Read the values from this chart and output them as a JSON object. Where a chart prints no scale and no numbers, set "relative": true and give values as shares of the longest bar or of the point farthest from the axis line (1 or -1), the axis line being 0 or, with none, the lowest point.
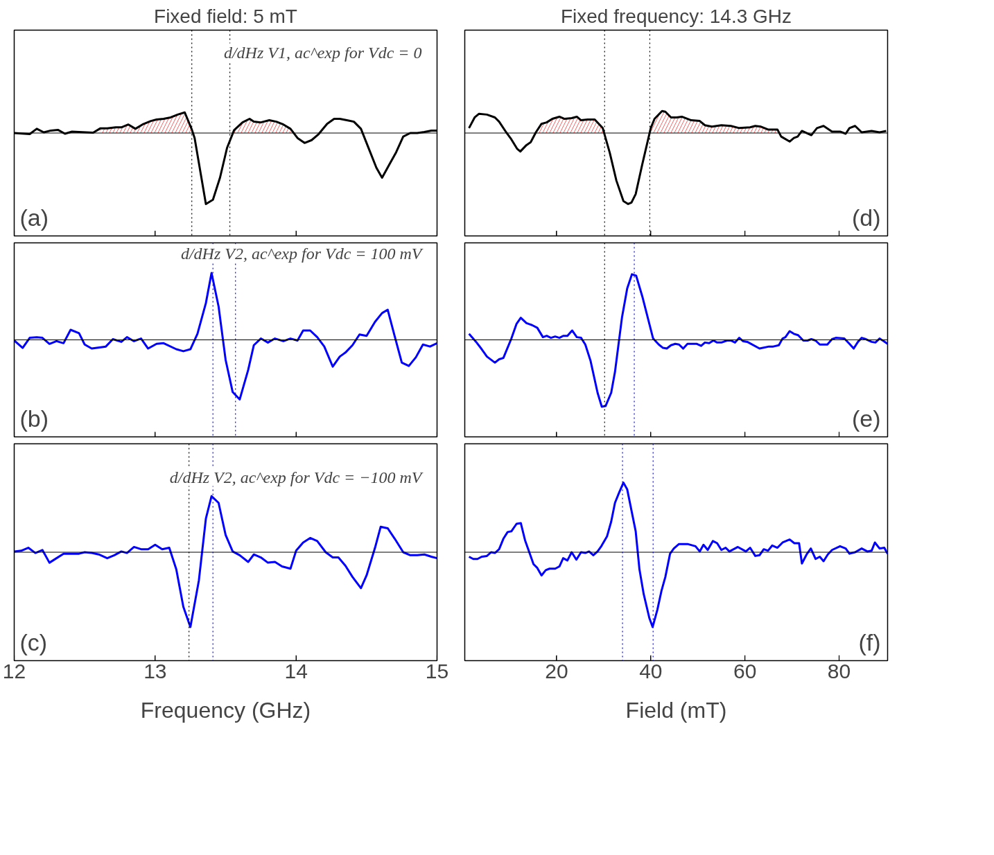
{
  "chart_data": [
    {
      "type": "line",
      "relative": true,
      "title": "Fixed field: 5 mT",
      "xlim": [
        12,
        15
      ],
      "xticks": [
        12,
        13,
        14,
        15
      ],
      "tick_labels": false,
      "grid": false,
      "x": [
        12.0,
        12.11,
        12.16,
        12.21,
        12.26,
        12.31,
        12.36,
        12.41,
        12.56,
        12.61,
        12.66,
        12.72,
        12.76,
        12.81,
        12.86,
        12.91,
        12.97,
        13.01,
        13.06,
        13.11,
        13.16,
        13.21,
        13.26,
        13.28,
        13.36,
        13.41,
        13.46,
        13.51,
        13.56,
        13.62,
        13.67,
        13.7,
        13.75,
        13.81,
        13.86,
        13.91,
        13.96,
        14.01,
        14.06,
        14.11,
        14.16,
        14.22,
        14.27,
        14.31,
        14.36,
        14.41,
        14.46,
        14.52,
        14.57,
        14.61,
        14.66,
        14.71,
        14.76,
        14.81,
        14.86,
        14.91,
        14.96,
        15.0
      ],
      "series": [
        {
          "type": "area",
          "color": "#ff0000",
          "x": [
            12.61,
            12.66,
            12.72,
            12.76,
            12.81,
            12.86,
            12.91,
            12.97,
            13.01,
            13.06,
            13.11,
            13.16,
            13.21,
            13.26
          ],
          "values": [
            0.065,
            0.065,
            0.08,
            0.08,
            0.12,
            0.06,
            0.12,
            0.17,
            0.19,
            0.2,
            0.22,
            0.26,
            0.29,
            0.05
          ]
        },
        {
          "type": "area",
          "color": "#ff0000",
          "x": [
            13.56,
            13.62,
            13.67,
            13.7,
            13.75,
            13.81,
            13.86,
            13.91,
            13.96
          ],
          "values": [
            0.04,
            0.15,
            0.2,
            0.16,
            0.15,
            0.18,
            0.16,
            0.12,
            0.06
          ]
        },
        {
          "type": "line",
          "color": "#000000",
          "values": [
            0.0,
            -0.015,
            0.06,
            0.01,
            0.035,
            0.045,
            -0.01,
            0.02,
            0.005,
            0.065,
            0.065,
            0.08,
            0.08,
            0.12,
            0.06,
            0.12,
            0.17,
            0.19,
            0.2,
            0.22,
            0.26,
            0.29,
            0.05,
            -0.07,
            -1,
            -0.94,
            -0.63,
            -0.21,
            0.04,
            0.15,
            0.2,
            0.16,
            0.15,
            0.18,
            0.16,
            0.12,
            0.06,
            -0.07,
            -0.14,
            -0.1,
            -0.015,
            0.13,
            0.2,
            0.2,
            0.18,
            0.16,
            0.06,
            -0.24,
            -0.49,
            -0.63,
            -0.45,
            -0.27,
            -0.05,
            0.0,
            0.0,
            0.015,
            0.035,
            0.035
          ]
        }
      ],
      "ref_lines": [
        {
          "axis": "x",
          "value": 13.26,
          "color": "#000000",
          "line_style": "dotted"
        },
        {
          "axis": "x",
          "value": 13.53,
          "color": "#000000",
          "line_style": "dotted"
        }
      ],
      "annotations": [
        "(a)",
        "d/dHz V1, ac^exp  for  Vdc = 0"
      ]
    },
    {
      "type": "line",
      "relative": true,
      "title": "Fixed frequency: 14.3 GHz",
      "xlim": [
        0.5,
        90.3
      ],
      "xticks": [
        20,
        40,
        60,
        80
      ],
      "tick_labels": false,
      "grid": false,
      "x": [
        1.4,
        2.6,
        3.5,
        5.2,
        6.9,
        7.8,
        9.3,
        10.4,
        11.6,
        12.3,
        13.6,
        14.5,
        15.6,
        16.8,
        17.9,
        19.1,
        20.6,
        21.7,
        23.2,
        24.3,
        25.2,
        26.6,
        28.1,
        29.8,
        31.3,
        32.7,
        34.2,
        35.2,
        35.9,
        36.8,
        38.2,
        40.0,
        40.8,
        42.4,
        43.1,
        44.3,
        45.5,
        46.6,
        48.6,
        50.4,
        51.5,
        53.0,
        55.0,
        57.0,
        58.8,
        61.1,
        62.2,
        63.4,
        64.9,
        66.9,
        67.7,
        69.5,
        70.4,
        71.2,
        72.1,
        74.1,
        75.3,
        76.7,
        78.5,
        80.2,
        81.4,
        82.2,
        83.4,
        84.8,
        86.9,
        88.6,
        90.0
      ],
      "series": [
        {
          "type": "area",
          "color": "#ff0000",
          "x": [
            15.6,
            16.8,
            17.9,
            19.1,
            20.6,
            21.7,
            23.2,
            24.3,
            25.2,
            26.6,
            28.1,
            29.8
          ],
          "values": [
            0.01,
            0.13,
            0.15,
            0.2,
            0.23,
            0.2,
            0.21,
            0.23,
            0.18,
            0.19,
            0.19,
            0.07
          ]
        },
        {
          "type": "area",
          "color": "#ff0000",
          "x": [
            40.0,
            40.8,
            42.4,
            43.1,
            44.3,
            45.5,
            46.6,
            48.6,
            50.4,
            51.5,
            53.0,
            55.0,
            57.0,
            58.8,
            61.1,
            62.2,
            63.4,
            64.9,
            66.9
          ],
          "values": [
            0.07,
            0.2,
            0.31,
            0.3,
            0.22,
            0.22,
            0.23,
            0.18,
            0.17,
            0.11,
            0.09,
            0.11,
            0.1,
            0.07,
            0.08,
            0.1,
            0.09,
            0.05,
            0.05
          ]
        },
        {
          "type": "line",
          "color": "#000000",
          "values": [
            0.07,
            0.22,
            0.27,
            0.26,
            0.22,
            0.16,
            0.01,
            -0.09,
            -0.22,
            -0.26,
            -0.17,
            -0.13,
            0.01,
            0.13,
            0.15,
            0.2,
            0.23,
            0.2,
            0.21,
            0.23,
            0.18,
            0.19,
            0.19,
            0.07,
            -0.28,
            -0.67,
            -0.96,
            -1,
            -0.98,
            -0.86,
            -0.44,
            0.07,
            0.2,
            0.31,
            0.3,
            0.22,
            0.22,
            0.23,
            0.18,
            0.17,
            0.11,
            0.09,
            0.11,
            0.1,
            0.07,
            0.08,
            0.1,
            0.09,
            0.05,
            0.05,
            -0.05,
            -0.12,
            -0.07,
            -0.05,
            0.03,
            -0.03,
            0.07,
            0.1,
            0.02,
            0.02,
            -0.01,
            0.07,
            0.1,
            0.01,
            0.03,
            0.01,
            0.03
          ]
        }
      ],
      "ref_lines": [
        {
          "axis": "x",
          "value": 30.2,
          "color": "#000000",
          "line_style": "dotted"
        },
        {
          "axis": "x",
          "value": 39.8,
          "color": "#000000",
          "line_style": "dotted"
        }
      ],
      "annotations": [
        "(d)"
      ]
    },
    {
      "type": "line",
      "relative": true,
      "xlim": [
        12,
        15
      ],
      "xticks": [
        12,
        13,
        14,
        15
      ],
      "tick_labels": false,
      "grid": false,
      "x": [
        12.0,
        12.06,
        12.11,
        12.16,
        12.2,
        12.25,
        12.3,
        12.35,
        12.4,
        12.46,
        12.5,
        12.55,
        12.65,
        12.7,
        12.76,
        12.8,
        12.85,
        12.9,
        12.95,
        13.01,
        13.06,
        13.15,
        13.2,
        13.25,
        13.3,
        13.36,
        13.4,
        13.45,
        13.5,
        13.55,
        13.6,
        13.66,
        13.7,
        13.75,
        13.8,
        13.85,
        13.91,
        13.96,
        14.01,
        14.05,
        14.1,
        14.15,
        14.2,
        14.26,
        14.31,
        14.35,
        14.4,
        14.45,
        14.5,
        14.56,
        14.61,
        14.65,
        14.7,
        14.75,
        14.8,
        14.85,
        14.9,
        14.95,
        15.0
      ],
      "series": [
        {
          "type": "line",
          "color": "#0000ff",
          "values": [
            -0.01,
            -0.12,
            0.03,
            0.04,
            0.03,
            -0.06,
            -0.02,
            -0.05,
            0.15,
            0.1,
            -0.07,
            -0.13,
            -0.1,
            0.01,
            -0.03,
            0.04,
            -0.02,
            0.02,
            -0.13,
            -0.06,
            -0.05,
            -0.14,
            -0.17,
            -0.14,
            0.09,
            0.55,
            1.0,
            0.5,
            -0.3,
            -0.78,
            -0.89,
            -0.45,
            -0.08,
            0.02,
            -0.04,
            0.02,
            -0.02,
            0.02,
            -0.01,
            0.14,
            0.14,
            0.04,
            -0.1,
            -0.4,
            -0.25,
            -0.19,
            -0.08,
            0.08,
            0.06,
            0.27,
            0.4,
            0.45,
            0.05,
            -0.34,
            -0.39,
            -0.26,
            -0.07,
            -0.1,
            -0.05
          ]
        }
      ],
      "ref_lines": [
        {
          "axis": "x",
          "value": 13.41,
          "color": "#0000ff",
          "line_style": "dotted"
        },
        {
          "axis": "x",
          "value": 13.57,
          "color": "#0000ff",
          "line_style": "dotted"
        }
      ],
      "annotations": [
        "(b)",
        "d/dHz V2, ac^exp  for  Vdc = 100 mV"
      ]
    },
    {
      "type": "line",
      "relative": true,
      "xlim": [
        0.5,
        90.3
      ],
      "xticks": [
        20,
        40,
        60,
        80
      ],
      "tick_labels": false,
      "grid": false,
      "x": [
        1.4,
        2.9,
        4.1,
        5.2,
        6.9,
        7.8,
        8.7,
        10.4,
        11.5,
        12.4,
        13.6,
        14.8,
        15.9,
        17.1,
        17.9,
        18.8,
        19.7,
        20.6,
        21.4,
        22.3,
        23.3,
        24.3,
        25.2,
        26.1,
        27.2,
        28.7,
        29.6,
        30.4,
        31.6,
        32.4,
        33.9,
        35.0,
        36.0,
        36.9,
        38.2,
        40.5,
        41.7,
        42.6,
        43.4,
        44.3,
        45.2,
        46.0,
        46.9,
        47.8,
        49.8,
        50.7,
        51.5,
        52.4,
        53.3,
        54.1,
        55.0,
        56.2,
        57.0,
        57.9,
        58.8,
        59.6,
        60.5,
        63.1,
        65.1,
        66.0,
        67.2,
        68.0,
        68.6,
        69.5,
        70.4,
        71.3,
        72.4,
        73.3,
        74.1,
        75.0,
        75.9,
        77.5,
        78.5,
        79.3,
        81.1,
        82.2,
        83.1,
        84.0,
        84.8,
        85.7,
        86.9,
        87.7,
        88.6,
        89.5,
        90.3
      ],
      "series": [
        {
          "type": "line",
          "color": "#0000ff",
          "values": [
            0.09,
            -0.03,
            -0.14,
            -0.25,
            -0.34,
            -0.29,
            -0.27,
            0.02,
            0.24,
            0.33,
            0.25,
            0.22,
            0.18,
            0.04,
            0.06,
            0.03,
            0.05,
            0.03,
            0.06,
            0.06,
            0.14,
            0.04,
            0.03,
            -0.07,
            -0.31,
            -0.79,
            -1,
            -0.99,
            -0.79,
            -0.48,
            0.34,
            0.77,
            0.98,
            0.96,
            0.65,
            0.02,
            -0.07,
            -0.12,
            -0.13,
            -0.08,
            -0.06,
            -0.07,
            -0.13,
            -0.06,
            -0.06,
            -0.09,
            -0.04,
            -0.05,
            -0.01,
            -0.04,
            -0.04,
            -0.01,
            -0.01,
            -0.04,
            0.03,
            -0.02,
            -0.03,
            -0.13,
            -0.1,
            -0.1,
            -0.08,
            0.02,
            0.04,
            0.13,
            0.09,
            0.07,
            -0.01,
            -0.01,
            0.01,
            -0.01,
            -0.07,
            -0.07,
            0.01,
            0.03,
            0.02,
            -0.06,
            -0.13,
            -0.03,
            0.03,
            0.01,
            -0.03,
            -0.04,
            0.02,
            -0.02,
            -0.06
          ]
        }
      ],
      "ref_lines": [
        {
          "axis": "x",
          "value": 30.2,
          "color": "#000000",
          "line_style": "dotted"
        },
        {
          "axis": "x",
          "value": 36.5,
          "color": "#0000ff",
          "line_style": "dotted"
        }
      ],
      "annotations": [
        "(e)"
      ]
    },
    {
      "type": "line",
      "relative": true,
      "xlabel": "Frequency (GHz)",
      "xlim": [
        12,
        15
      ],
      "xticks": [
        12,
        13,
        14,
        15
      ],
      "tick_labels": "x",
      "grid": false,
      "x": [
        12.0,
        12.05,
        12.1,
        12.15,
        12.2,
        12.25,
        12.3,
        12.35,
        12.4,
        12.46,
        12.5,
        12.55,
        12.6,
        12.66,
        12.71,
        12.76,
        12.8,
        12.85,
        12.9,
        12.95,
        13.0,
        13.05,
        13.1,
        13.15,
        13.2,
        13.25,
        13.31,
        13.36,
        13.4,
        13.45,
        13.5,
        13.55,
        13.6,
        13.66,
        13.7,
        13.75,
        13.8,
        13.85,
        13.9,
        13.96,
        14.0,
        14.05,
        14.1,
        14.15,
        14.21,
        14.26,
        14.3,
        14.35,
        14.4,
        14.46,
        14.5,
        14.56,
        14.6,
        14.65,
        14.7,
        14.76,
        14.81,
        14.86,
        14.91,
        14.96,
        15.0
      ],
      "series": [
        {
          "type": "line",
          "color": "#0000ff",
          "values": [
            0.01,
            0.02,
            0.06,
            -0.01,
            0.03,
            -0.14,
            -0.08,
            -0.02,
            -0.02,
            -0.02,
            0,
            -0.01,
            -0.03,
            -0.08,
            -0.04,
            0.01,
            -0.01,
            0.07,
            0.04,
            0.04,
            0.1,
            0.04,
            0.06,
            -0.23,
            -0.73,
            -1.0,
            -0.38,
            0.45,
            0.75,
            0.66,
            0.23,
            0.01,
            -0.04,
            -0.13,
            -0.03,
            -0.07,
            -0.14,
            -0.13,
            -0.19,
            -0.22,
            0.02,
            0.13,
            0.19,
            0.15,
            0,
            -0.07,
            -0.07,
            -0.18,
            -0.33,
            -0.48,
            -0.31,
            0.06,
            0.34,
            0.32,
            0.18,
            0,
            -0.04,
            -0.04,
            -0.03,
            -0.06,
            -0.08
          ]
        }
      ],
      "ref_lines": [
        {
          "axis": "x",
          "value": 13.24,
          "color": "#000000",
          "line_style": "dotted"
        },
        {
          "axis": "x",
          "value": 13.41,
          "color": "#0000ff",
          "line_style": "dotted"
        }
      ],
      "annotations": [
        "(c)",
        "d/dHz V2, ac^exp  for  Vdc = −100 mV"
      ]
    },
    {
      "type": "line",
      "relative": true,
      "xlabel": "Field (mT)",
      "xlim": [
        0.5,
        90.3
      ],
      "xticks": [
        20,
        40,
        60,
        80
      ],
      "tick_labels": "x",
      "grid": false,
      "x": [
        1.4,
        2.3,
        3.2,
        4.1,
        5.2,
        6.1,
        6.9,
        7.8,
        8.7,
        9.6,
        10.4,
        11.5,
        12.4,
        13.3,
        15.1,
        15.9,
        16.8,
        17.7,
        18.5,
        19.7,
        20.6,
        21.4,
        22.3,
        23.2,
        24.2,
        25.2,
        26.1,
        26.9,
        27.8,
        28.7,
        29.5,
        30.7,
        31.6,
        32.4,
        33.3,
        34.2,
        35.0,
        36.8,
        37.6,
        38.5,
        39.7,
        40.4,
        41.4,
        42.3,
        43.1,
        44.1,
        44.9,
        46.0,
        47.8,
        49.5,
        50.4,
        51.2,
        52.1,
        53.2,
        54.1,
        55.0,
        55.9,
        56.7,
        58.5,
        60.2,
        61.1,
        62.2,
        63.1,
        64.0,
        64.9,
        65.8,
        66.9,
        68.0,
        69.5,
        70.5,
        71.5,
        72.1,
        73.1,
        74.0,
        75.0,
        75.9,
        76.7,
        77.6,
        78.5,
        80.2,
        81.4,
        82.2,
        83.4,
        84.8,
        86.0,
        86.9,
        87.6,
        88.6,
        89.6,
        90.3
      ],
      "series": [
        {
          "type": "line",
          "color": "#0000ff",
          "values": [
            -0.06,
            -0.09,
            -0.09,
            -0.06,
            -0.05,
            0,
            -0.01,
            0.04,
            0.18,
            0.27,
            0.28,
            0.38,
            0.39,
            0.16,
            -0.16,
            -0.21,
            -0.31,
            -0.24,
            -0.22,
            -0.22,
            -0.19,
            -0.08,
            -0.11,
            0,
            -0.1,
            0,
            -0.01,
            0.01,
            -0.04,
            0.01,
            0.08,
            0.21,
            0.41,
            0.66,
            0.8,
            0.93,
            0.84,
            0.28,
            -0.23,
            -0.56,
            -0.88,
            -1.0,
            -0.77,
            -0.51,
            -0.33,
            -0.02,
            0.05,
            0.11,
            0.11,
            0.08,
            0.01,
            0.1,
            0.03,
            0.15,
            0.12,
            0.03,
            0.06,
            0.01,
            0.07,
            0.01,
            0.06,
            -0.05,
            -0.04,
            0.04,
            0.02,
            0.09,
            0.06,
            0.13,
            0.17,
            0.12,
            0.12,
            -0.15,
            -0.03,
            0.05,
            -0.09,
            -0.06,
            -0.12,
            -0.03,
            0.03,
            0.08,
            0.05,
            -0.02,
            0,
            0.05,
            0.01,
            0.02,
            0.13,
            0.05,
            0.06,
            -0.02
          ]
        }
      ],
      "ref_lines": [
        {
          "axis": "x",
          "value": 34.0,
          "color": "#0000ff",
          "line_style": "dotted"
        },
        {
          "axis": "x",
          "value": 40.5,
          "color": "#0000ff",
          "line_style": "dotted"
        }
      ],
      "annotations": [
        "(f)"
      ]
    }
  ]
}
